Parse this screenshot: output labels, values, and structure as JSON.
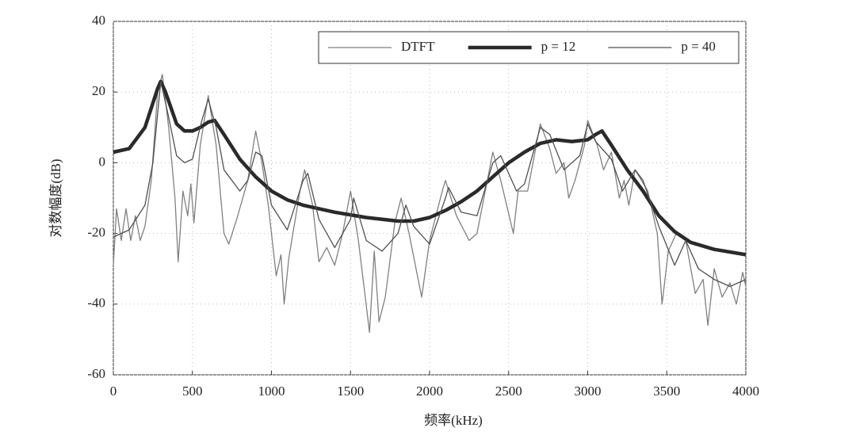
{
  "chart_data": {
    "type": "line",
    "x_label": "频率(kHz)",
    "y_label": "对数幅度(dB)",
    "xlim": [
      0,
      4000
    ],
    "ylim": [
      -60,
      40
    ],
    "xticks": [
      0,
      500,
      1000,
      1500,
      2000,
      2500,
      3000,
      3500,
      4000
    ],
    "yticks": [
      -60,
      -40,
      -20,
      0,
      20,
      40
    ],
    "grid": true,
    "legend": "upper right",
    "series": [
      {
        "name": "DTFT",
        "color": "#808080",
        "width": 1.3,
        "x": [
          0,
          20,
          50,
          80,
          110,
          140,
          170,
          200,
          240,
          280,
          310,
          350,
          390,
          410,
          440,
          470,
          490,
          510,
          550,
          600,
          650,
          700,
          730,
          780,
          850,
          900,
          940,
          980,
          1030,
          1060,
          1080,
          1110,
          1180,
          1210,
          1260,
          1300,
          1350,
          1400,
          1450,
          1500,
          1550,
          1620,
          1650,
          1680,
          1720,
          1780,
          1820,
          1870,
          1950,
          2000,
          2080,
          2100,
          2170,
          2250,
          2300,
          2400,
          2450,
          2530,
          2560,
          2620,
          2700,
          2760,
          2800,
          2850,
          2880,
          2920,
          2980,
          3000,
          3060,
          3100,
          3150,
          3200,
          3230,
          3260,
          3300,
          3380,
          3440,
          3470,
          3510,
          3560,
          3620,
          3680,
          3730,
          3760,
          3800,
          3850,
          3900,
          3940,
          3980,
          4000
        ],
        "values": [
          -29,
          -13,
          -22,
          -13,
          -22,
          -15,
          -22,
          -18,
          -5,
          20,
          25,
          10,
          -10,
          -28,
          -8,
          -15,
          -6,
          -17,
          5,
          19,
          5,
          -20,
          -23,
          -16,
          -5,
          9,
          0,
          -12,
          -32,
          -26,
          -40,
          -27,
          -8,
          -2,
          -12,
          -28,
          -24,
          -29,
          -20,
          -8,
          -22,
          -48,
          -25,
          -45,
          -38,
          -17,
          -10,
          -20,
          -38,
          -22,
          -8,
          -5,
          -15,
          -22,
          -20,
          3,
          -5,
          -20,
          -8,
          -8,
          11,
          4,
          -3,
          0,
          -10,
          -5,
          5,
          12,
          5,
          -2,
          3,
          -10,
          -5,
          -12,
          -2,
          -8,
          -20,
          -40,
          -25,
          -20,
          -22,
          -37,
          -33,
          -46,
          -30,
          -38,
          -34,
          -40,
          -31,
          -35
        ]
      },
      {
        "name": "p = 12",
        "color": "#2a2a2a",
        "width": 4.5,
        "x": [
          0,
          100,
          200,
          280,
          300,
          330,
          400,
          450,
          500,
          550,
          600,
          640,
          700,
          800,
          900,
          1000,
          1100,
          1200,
          1400,
          1600,
          1800,
          1900,
          2000,
          2100,
          2200,
          2300,
          2400,
          2500,
          2600,
          2700,
          2800,
          2900,
          3000,
          3050,
          3090,
          3150,
          3250,
          3350,
          3450,
          3550,
          3650,
          3800,
          4000
        ],
        "values": [
          3,
          4,
          10,
          21,
          23,
          20,
          11,
          9,
          9,
          10,
          11.5,
          12,
          8,
          1,
          -4,
          -8,
          -10.5,
          -12,
          -14,
          -15.5,
          -16.5,
          -16.5,
          -15.5,
          -13.5,
          -11,
          -8,
          -4,
          0,
          3,
          5.5,
          6.5,
          6,
          6.5,
          8,
          9,
          5,
          -2,
          -8,
          -15,
          -19.5,
          -22.5,
          -24.5,
          -26
        ]
      },
      {
        "name": "p = 40",
        "color": "#505050",
        "width": 1.3,
        "x": [
          0,
          100,
          200,
          250,
          300,
          340,
          400,
          450,
          500,
          560,
          600,
          650,
          700,
          800,
          850,
          900,
          940,
          1000,
          1100,
          1200,
          1230,
          1300,
          1400,
          1500,
          1520,
          1600,
          1700,
          1800,
          1850,
          1900,
          2000,
          2100,
          2120,
          2200,
          2300,
          2400,
          2450,
          2550,
          2600,
          2700,
          2760,
          2850,
          2950,
          3000,
          3050,
          3150,
          3220,
          3300,
          3350,
          3450,
          3550,
          3620,
          3700,
          3800,
          3900,
          4000
        ],
        "values": [
          -21,
          -19,
          -12,
          0,
          23,
          15,
          2,
          0,
          1,
          12,
          18,
          10,
          -2,
          -8,
          -5,
          3,
          2,
          -12,
          -19,
          -5,
          -3,
          -16,
          -24,
          -16,
          -10,
          -22,
          -25,
          -20,
          -12,
          -18,
          -23,
          -10,
          -7,
          -14,
          -15,
          0,
          2,
          -8,
          -6,
          10,
          8,
          -2,
          2,
          11,
          6,
          1,
          -8,
          -2,
          -5,
          -18,
          -29,
          -22,
          -30,
          -33,
          -35,
          -33
        ]
      }
    ]
  }
}
